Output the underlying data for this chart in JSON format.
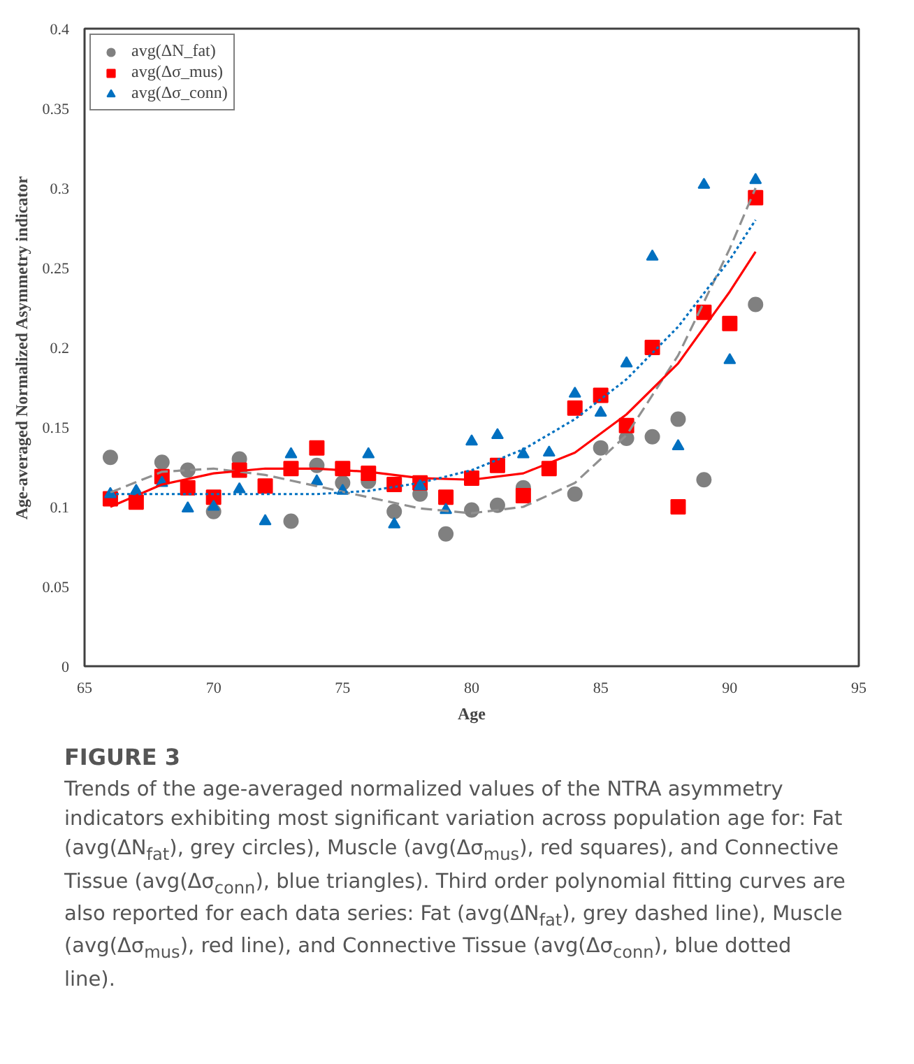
{
  "chart_data": {
    "type": "scatter",
    "xlabel": "Age",
    "ylabel": "Age-averaged Normalized Asymmetry indicator",
    "x": [
      66,
      67,
      68,
      69,
      70,
      71,
      72,
      73,
      74,
      75,
      76,
      77,
      78,
      79,
      80,
      81,
      82,
      83,
      84,
      85,
      86,
      87,
      88,
      89,
      90,
      91
    ],
    "xlim": [
      65,
      95
    ],
    "xticks": [
      65,
      70,
      75,
      80,
      85,
      90,
      95
    ],
    "ylim": [
      0,
      0.4
    ],
    "yticks": [
      0,
      0.05,
      0.1,
      0.15,
      0.2,
      0.25,
      0.3,
      0.35,
      0.4
    ],
    "grid": false,
    "legend": "top left",
    "series": [
      {
        "name": "avg(ΔN_fat)",
        "color": "#808080",
        "marker": "circle",
        "values": [
          0.131,
          null,
          0.128,
          0.123,
          0.097,
          0.13,
          null,
          0.091,
          0.126,
          0.115,
          0.116,
          0.097,
          0.108,
          0.083,
          0.098,
          0.101,
          0.112,
          null,
          0.108,
          0.137,
          0.143,
          0.144,
          0.155,
          0.117,
          null,
          0.227
        ]
      },
      {
        "name": "avg(Δσ_mus)",
        "color": "#ff0000",
        "marker": "square",
        "values": [
          0.105,
          0.103,
          0.119,
          0.112,
          0.106,
          0.123,
          0.113,
          0.124,
          0.137,
          0.124,
          0.121,
          0.114,
          0.115,
          0.106,
          0.118,
          0.126,
          0.107,
          0.124,
          0.162,
          0.17,
          0.151,
          0.2,
          0.1,
          0.222,
          0.215,
          0.294
        ]
      },
      {
        "name": "avg(Δσ_conn)",
        "color": "#0070c0",
        "marker": "triangle",
        "values": [
          0.108,
          0.11,
          0.115,
          0.099,
          0.1,
          0.111,
          0.091,
          0.133,
          0.116,
          0.11,
          0.133,
          0.089,
          0.113,
          0.098,
          0.141,
          0.145,
          0.133,
          0.134,
          0.171,
          0.159,
          0.19,
          0.257,
          0.138,
          0.302,
          0.192,
          0.305
        ]
      },
      {
        "type": "line",
        "color": "#909090",
        "line_style": "dashed",
        "x": [
          66,
          68,
          70,
          72,
          74,
          76,
          78,
          80,
          82,
          84,
          86,
          88,
          90,
          91
        ],
        "values": [
          0.109,
          0.122,
          0.124,
          0.12,
          0.113,
          0.106,
          0.099,
          0.096,
          0.1,
          0.115,
          0.145,
          0.195,
          0.262,
          0.3
        ]
      },
      {
        "type": "line",
        "color": "#ff0000",
        "line_style": "solid",
        "x": [
          66,
          68,
          70,
          72,
          74,
          76,
          78,
          80,
          82,
          84,
          86,
          88,
          90,
          91
        ],
        "values": [
          0.1,
          0.114,
          0.121,
          0.124,
          0.124,
          0.122,
          0.118,
          0.117,
          0.121,
          0.134,
          0.158,
          0.19,
          0.235,
          0.26
        ]
      },
      {
        "type": "line",
        "color": "#0070c0",
        "line_style": "dotted",
        "x": [
          66,
          70,
          74,
          76,
          78,
          80,
          82,
          84,
          86,
          88,
          90,
          91
        ],
        "values": [
          0.108,
          0.108,
          0.108,
          0.11,
          0.115,
          0.123,
          0.136,
          0.155,
          0.18,
          0.213,
          0.255,
          0.28
        ]
      }
    ],
    "annotations": [
      "FIGURE 3",
      "Trends of the age-averaged normalized values of the NTRA asymmetry indicators exhibiting most significant variation across population age for: Fat (avg(ΔN$_{fat}$), grey circles), Muscle (avg(Δσ$_{mus}$), red squares), and Connective Tissue (avg(Δσ$_{conn}$), blue triangles). Third order polynomial fitting curves are also reported for each data series: Fat (avg(ΔN$_{fat}$), grey dashed line), Muscle (avg(Δσ$_{mus}$), red line), and Connective Tissue (avg(Δσ$_{conn}$), blue dotted line)."
    ]
  }
}
